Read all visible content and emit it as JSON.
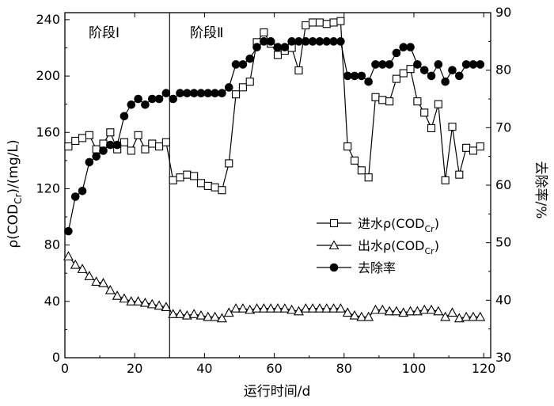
{
  "chart_data": {
    "type": "line",
    "xlabel": "运行时间/d",
    "ylabel": "ρ(COD",
    "ylabel_sub": "Cr",
    "ylabel_tail": ")/(mg/L)",
    "y2label": "去除率/%",
    "xlim": [
      0,
      122
    ],
    "ylim": [
      0,
      245
    ],
    "y2lim": [
      30,
      90
    ],
    "x_ticks": [
      0,
      20,
      40,
      60,
      80,
      100,
      120
    ],
    "y_ticks": [
      0,
      40,
      80,
      120,
      160,
      200,
      240
    ],
    "y2_ticks": [
      30,
      40,
      50,
      60,
      70,
      80,
      90
    ],
    "divider_x": 30,
    "stages": [
      {
        "label": "阶段Ⅰ"
      },
      {
        "label": "阶段Ⅱ"
      }
    ],
    "legend": {
      "placement": "center-right",
      "entries": [
        {
          "name": "进水ρ(COD",
          "sub": "Cr",
          "tail": ")",
          "marker": "square-open"
        },
        {
          "name": "出水ρ(COD",
          "sub": "Cr",
          "tail": ")",
          "marker": "triangle-open"
        },
        {
          "name": "去除率",
          "sub": "",
          "tail": "",
          "marker": "circle-filled"
        }
      ]
    },
    "series": [
      {
        "name": "进水ρ(CODCr)",
        "axis": "left",
        "marker": "square-open",
        "x": [
          1,
          3,
          5,
          7,
          9,
          11,
          13,
          15,
          17,
          19,
          21,
          23,
          25,
          27,
          29,
          31,
          33,
          35,
          37,
          39,
          41,
          43,
          45,
          47,
          49,
          51,
          53,
          55,
          57,
          59,
          61,
          63,
          65,
          67,
          69,
          71,
          73,
          75,
          77,
          79,
          81,
          83,
          85,
          87,
          89,
          91,
          93,
          95,
          97,
          99,
          101,
          103,
          105,
          107,
          109,
          111,
          113,
          115,
          117,
          119
        ],
        "values": [
          150,
          154,
          156,
          158,
          148,
          152,
          160,
          148,
          153,
          147,
          158,
          148,
          152,
          150,
          153,
          126,
          128,
          130,
          129,
          124,
          122,
          121,
          119,
          138,
          187,
          192,
          196,
          224,
          231,
          223,
          215,
          218,
          220,
          204,
          236,
          238,
          238,
          237,
          238,
          239,
          150,
          140,
          133,
          128,
          185,
          183,
          182,
          198,
          202,
          205,
          182,
          174,
          163,
          180,
          126,
          164,
          130,
          149,
          147,
          150
        ]
      },
      {
        "name": "出水ρ(CODCr)",
        "axis": "left",
        "marker": "triangle-open",
        "x": [
          1,
          3,
          5,
          7,
          9,
          11,
          13,
          15,
          17,
          19,
          21,
          23,
          25,
          27,
          29,
          31,
          33,
          35,
          37,
          39,
          41,
          43,
          45,
          47,
          49,
          51,
          53,
          55,
          57,
          59,
          61,
          63,
          65,
          67,
          69,
          71,
          73,
          75,
          77,
          79,
          81,
          83,
          85,
          87,
          89,
          91,
          93,
          95,
          97,
          99,
          101,
          103,
          105,
          107,
          109,
          111,
          113,
          115,
          117,
          119
        ],
        "values": [
          72,
          66,
          63,
          58,
          54,
          53,
          48,
          44,
          42,
          40,
          40,
          39,
          38,
          37,
          36,
          31,
          31,
          30,
          31,
          30,
          29,
          29,
          28,
          32,
          35,
          35,
          34,
          35,
          35,
          35,
          35,
          35,
          34,
          33,
          35,
          35,
          35,
          35,
          35,
          35,
          32,
          30,
          29,
          29,
          34,
          34,
          33,
          33,
          32,
          33,
          33,
          34,
          34,
          33,
          29,
          32,
          28,
          29,
          29,
          29
        ],
        "samples_are_approximate": true
      },
      {
        "name": "去除率",
        "axis": "right",
        "marker": "circle-filled",
        "x": [
          1,
          3,
          5,
          7,
          9,
          11,
          13,
          15,
          17,
          19,
          21,
          23,
          25,
          27,
          29,
          31,
          33,
          35,
          37,
          39,
          41,
          43,
          45,
          47,
          49,
          51,
          53,
          55,
          57,
          59,
          61,
          63,
          65,
          67,
          69,
          71,
          73,
          75,
          77,
          79,
          81,
          83,
          85,
          87,
          89,
          91,
          93,
          95,
          97,
          99,
          101,
          103,
          105,
          107,
          109,
          111,
          113,
          115,
          117,
          119
        ],
        "values": [
          52,
          58,
          59,
          64,
          65,
          66,
          67,
          67,
          72,
          74,
          75,
          74,
          75,
          75,
          76,
          75,
          76,
          76,
          76,
          76,
          76,
          76,
          76,
          77,
          81,
          81,
          82,
          84,
          85,
          85,
          84,
          84,
          85,
          85,
          85,
          85,
          85,
          85,
          85,
          85,
          79,
          79,
          79,
          78,
          81,
          81,
          81,
          83,
          84,
          84,
          81,
          80,
          79,
          81,
          78,
          80,
          79,
          81,
          81,
          81
        ]
      }
    ]
  }
}
